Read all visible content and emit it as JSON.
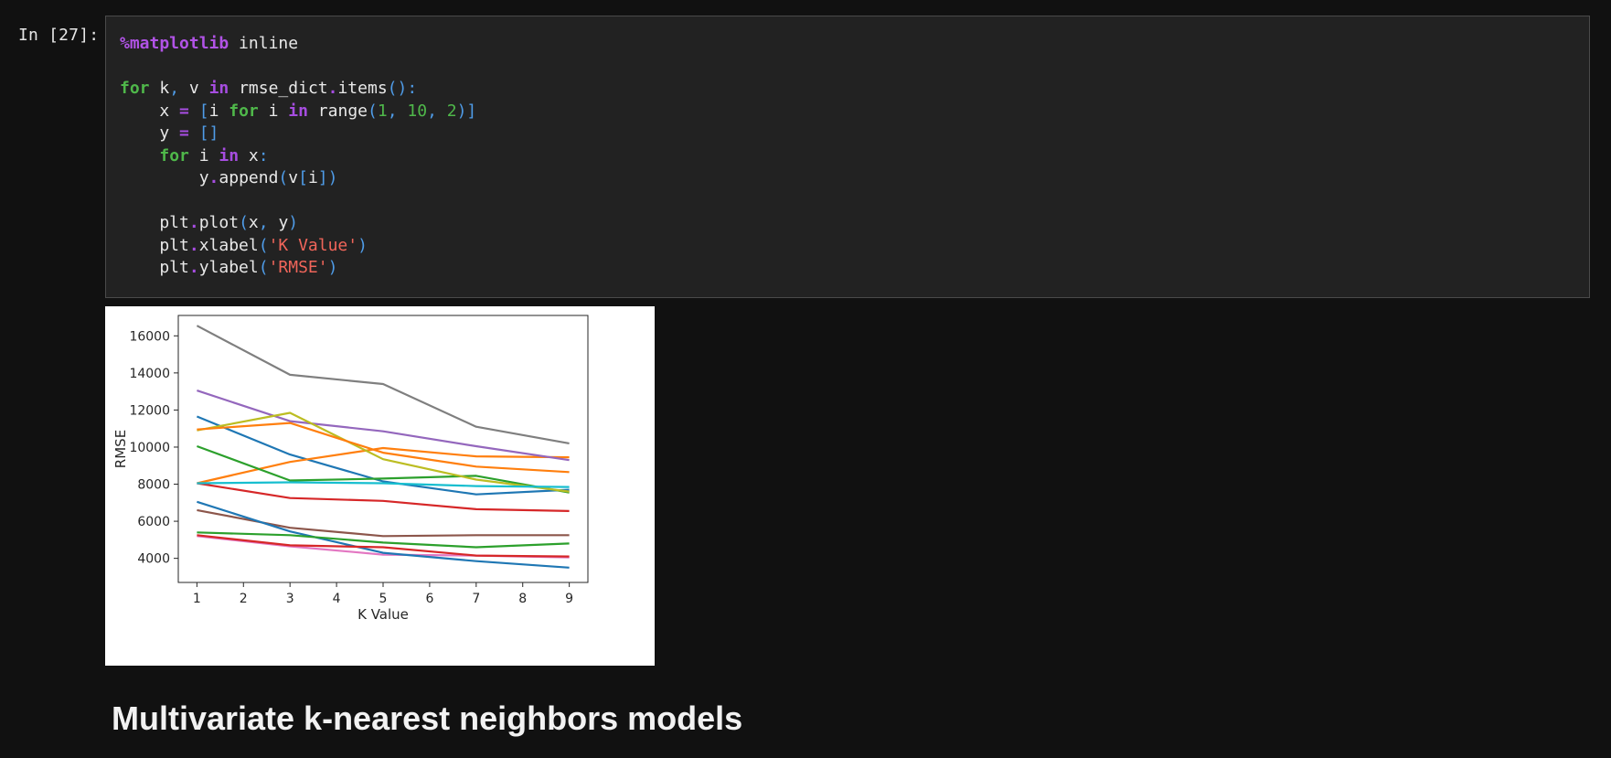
{
  "cell": {
    "prompt": "In [27]:",
    "code_lines": [
      [
        {
          "t": "%matplotlib",
          "c": "magic"
        },
        {
          "t": " inline",
          "c": "name"
        }
      ],
      [],
      [
        {
          "t": "for",
          "c": "kw"
        },
        {
          "t": " k",
          "c": "name"
        },
        {
          "t": ",",
          "c": "punc"
        },
        {
          "t": " v ",
          "c": "name"
        },
        {
          "t": "in",
          "c": "op"
        },
        {
          "t": " rmse_dict",
          "c": "name"
        },
        {
          "t": ".",
          "c": "op"
        },
        {
          "t": "items",
          "c": "name"
        },
        {
          "t": "():",
          "c": "punc"
        }
      ],
      [
        {
          "t": "    x ",
          "c": "name"
        },
        {
          "t": "=",
          "c": "op"
        },
        {
          "t": " ",
          "c": "name"
        },
        {
          "t": "[",
          "c": "punc"
        },
        {
          "t": "i ",
          "c": "name"
        },
        {
          "t": "for",
          "c": "kw"
        },
        {
          "t": " i ",
          "c": "name"
        },
        {
          "t": "in",
          "c": "op"
        },
        {
          "t": " range",
          "c": "name"
        },
        {
          "t": "(",
          "c": "punc"
        },
        {
          "t": "1",
          "c": "num"
        },
        {
          "t": ", ",
          "c": "punc"
        },
        {
          "t": "10",
          "c": "num"
        },
        {
          "t": ", ",
          "c": "punc"
        },
        {
          "t": "2",
          "c": "num"
        },
        {
          "t": ")]",
          "c": "punc"
        }
      ],
      [
        {
          "t": "    y ",
          "c": "name"
        },
        {
          "t": "=",
          "c": "op"
        },
        {
          "t": " ",
          "c": "name"
        },
        {
          "t": "[]",
          "c": "punc"
        }
      ],
      [
        {
          "t": "    ",
          "c": "name"
        },
        {
          "t": "for",
          "c": "kw"
        },
        {
          "t": " i ",
          "c": "name"
        },
        {
          "t": "in",
          "c": "op"
        },
        {
          "t": " x",
          "c": "name"
        },
        {
          "t": ":",
          "c": "punc"
        }
      ],
      [
        {
          "t": "        y",
          "c": "name"
        },
        {
          "t": ".",
          "c": "op"
        },
        {
          "t": "append",
          "c": "name"
        },
        {
          "t": "(",
          "c": "punc"
        },
        {
          "t": "v",
          "c": "name"
        },
        {
          "t": "[",
          "c": "punc"
        },
        {
          "t": "i",
          "c": "name"
        },
        {
          "t": "])",
          "c": "punc"
        }
      ],
      [],
      [
        {
          "t": "    plt",
          "c": "name"
        },
        {
          "t": ".",
          "c": "op"
        },
        {
          "t": "plot",
          "c": "name"
        },
        {
          "t": "(",
          "c": "punc"
        },
        {
          "t": "x",
          "c": "name"
        },
        {
          "t": ", ",
          "c": "punc"
        },
        {
          "t": "y",
          "c": "name"
        },
        {
          "t": ")",
          "c": "punc"
        }
      ],
      [
        {
          "t": "    plt",
          "c": "name"
        },
        {
          "t": ".",
          "c": "op"
        },
        {
          "t": "xlabel",
          "c": "name"
        },
        {
          "t": "(",
          "c": "punc"
        },
        {
          "t": "'K Value'",
          "c": "str"
        },
        {
          "t": ")",
          "c": "punc"
        }
      ],
      [
        {
          "t": "    plt",
          "c": "name"
        },
        {
          "t": ".",
          "c": "op"
        },
        {
          "t": "ylabel",
          "c": "name"
        },
        {
          "t": "(",
          "c": "punc"
        },
        {
          "t": "'RMSE'",
          "c": "str"
        },
        {
          "t": ")",
          "c": "punc"
        }
      ]
    ]
  },
  "chart_data": {
    "type": "line",
    "title": "",
    "xlabel": "K Value",
    "ylabel": "RMSE",
    "x": [
      1,
      3,
      5,
      7,
      9
    ],
    "xticks": [
      1,
      2,
      3,
      4,
      5,
      6,
      7,
      8,
      9
    ],
    "yticks": [
      4000,
      6000,
      8000,
      10000,
      12000,
      14000,
      16000
    ],
    "xlim": [
      0.6,
      9.4
    ],
    "ylim": [
      2700,
      17100
    ],
    "grid": false,
    "series": [
      {
        "color": "#1f77b4",
        "values": [
          11650,
          9600,
          8150,
          7450,
          7700
        ]
      },
      {
        "color": "#ff7f0e",
        "values": [
          8050,
          9200,
          9950,
          9500,
          9450
        ]
      },
      {
        "color": "#2ca02c",
        "values": [
          10050,
          8200,
          8300,
          8450,
          7550
        ]
      },
      {
        "color": "#d62728",
        "values": [
          8050,
          7250,
          7100,
          6650,
          6550
        ]
      },
      {
        "color": "#9467bd",
        "values": [
          13050,
          11400,
          10850,
          10050,
          9300
        ]
      },
      {
        "color": "#8c564b",
        "values": [
          6600,
          5650,
          5200,
          5250,
          5250
        ]
      },
      {
        "color": "#e377c2",
        "values": [
          5200,
          4650,
          4200,
          4150,
          4050
        ]
      },
      {
        "color": "#7f7f7f",
        "values": [
          16550,
          13900,
          13400,
          11100,
          10200
        ]
      },
      {
        "color": "#bcbd22",
        "values": [
          10900,
          11850,
          9350,
          8250,
          7600
        ]
      },
      {
        "color": "#17becf",
        "values": [
          8050,
          8100,
          8050,
          7900,
          7850
        ]
      },
      {
        "color": "#1f77b4",
        "values": [
          7050,
          5450,
          4300,
          3850,
          3500
        ]
      },
      {
        "color": "#ff7f0e",
        "values": [
          10950,
          11300,
          9700,
          8950,
          8650
        ]
      },
      {
        "color": "#2ca02c",
        "values": [
          5400,
          5250,
          4850,
          4600,
          4800
        ]
      },
      {
        "color": "#d62728",
        "values": [
          5250,
          4700,
          4600,
          4150,
          4100
        ]
      }
    ]
  },
  "markdown": {
    "heading": "Multivariate k-nearest neighbors models"
  }
}
